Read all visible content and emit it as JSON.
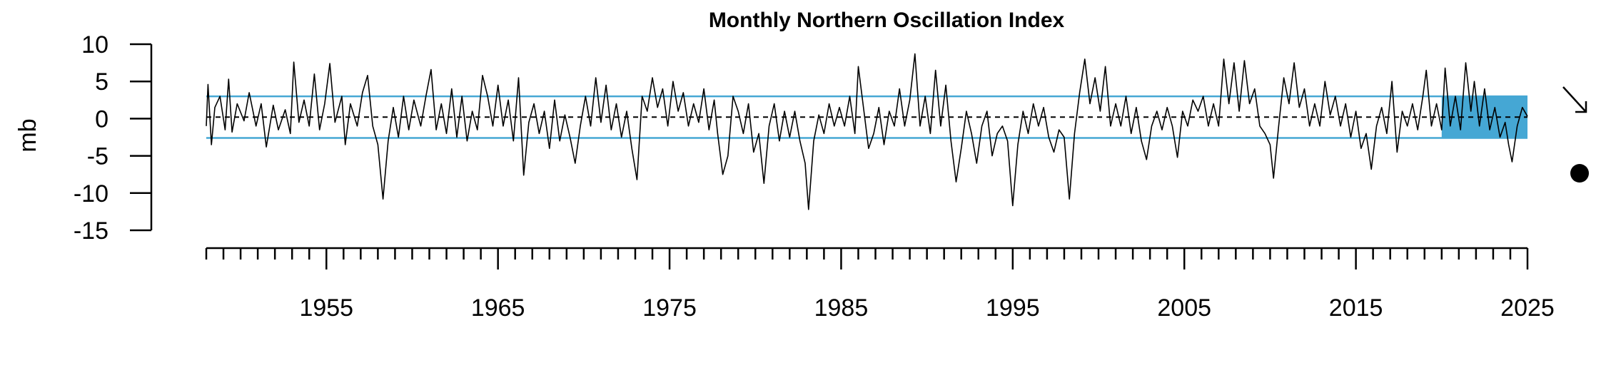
{
  "chart_data": {
    "type": "line",
    "title": "Monthly Northern Oscillation Index",
    "ylabel": "mb",
    "xlabel": "",
    "xlim": [
      1948,
      2025
    ],
    "ylim": [
      -15,
      10
    ],
    "yticks": [
      10,
      5,
      0,
      -5,
      -10,
      -15
    ],
    "xticks_labeled": [
      1955,
      1965,
      1975,
      1985,
      1995,
      2005,
      2015,
      2025
    ],
    "grid": false,
    "mean": 0.2,
    "band": {
      "upper": 3.0,
      "lower": -2.6
    },
    "highlight": {
      "start": 2020.0,
      "end": 2025.0
    },
    "trend": "decreasing",
    "status": "below",
    "colors": {
      "line": "#000000",
      "band": "#45a7d4",
      "highlight": "#45a7d4"
    },
    "series": [
      {
        "values": [
          {
            "x": 1948.0,
            "y": -1.0
          },
          {
            "x": 1948.1,
            "y": 4.6
          },
          {
            "x": 1948.3,
            "y": -3.5
          },
          {
            "x": 1948.5,
            "y": 1.5
          },
          {
            "x": 1948.8,
            "y": 3.0
          },
          {
            "x": 1949.1,
            "y": -1.5
          },
          {
            "x": 1949.3,
            "y": 5.3
          },
          {
            "x": 1949.5,
            "y": -1.8
          },
          {
            "x": 1949.8,
            "y": 2.0
          },
          {
            "x": 1950.2,
            "y": -0.3
          },
          {
            "x": 1950.5,
            "y": 3.5
          },
          {
            "x": 1950.9,
            "y": -1.0
          },
          {
            "x": 1951.2,
            "y": 2.0
          },
          {
            "x": 1951.5,
            "y": -3.8
          },
          {
            "x": 1951.9,
            "y": 1.8
          },
          {
            "x": 1952.2,
            "y": -1.5
          },
          {
            "x": 1952.6,
            "y": 1.2
          },
          {
            "x": 1952.9,
            "y": -2.0
          },
          {
            "x": 1953.1,
            "y": 7.6
          },
          {
            "x": 1953.4,
            "y": -0.5
          },
          {
            "x": 1953.7,
            "y": 2.5
          },
          {
            "x": 1954.0,
            "y": -1.0
          },
          {
            "x": 1954.3,
            "y": 6.0
          },
          {
            "x": 1954.6,
            "y": -1.5
          },
          {
            "x": 1954.9,
            "y": 2.0
          },
          {
            "x": 1955.2,
            "y": 7.4
          },
          {
            "x": 1955.5,
            "y": -0.5
          },
          {
            "x": 1955.9,
            "y": 3.0
          },
          {
            "x": 1956.1,
            "y": -3.5
          },
          {
            "x": 1956.4,
            "y": 2.0
          },
          {
            "x": 1956.8,
            "y": -1.0
          },
          {
            "x": 1957.1,
            "y": 3.5
          },
          {
            "x": 1957.4,
            "y": 5.8
          },
          {
            "x": 1957.7,
            "y": -1.0
          },
          {
            "x": 1958.0,
            "y": -3.5
          },
          {
            "x": 1958.3,
            "y": -10.8
          },
          {
            "x": 1958.6,
            "y": -3.0
          },
          {
            "x": 1958.9,
            "y": 1.5
          },
          {
            "x": 1959.2,
            "y": -2.5
          },
          {
            "x": 1959.5,
            "y": 3.0
          },
          {
            "x": 1959.8,
            "y": -1.5
          },
          {
            "x": 1960.1,
            "y": 2.5
          },
          {
            "x": 1960.5,
            "y": -1.0
          },
          {
            "x": 1960.8,
            "y": 3.0
          },
          {
            "x": 1961.1,
            "y": 6.6
          },
          {
            "x": 1961.4,
            "y": -1.5
          },
          {
            "x": 1961.7,
            "y": 2.0
          },
          {
            "x": 1962.0,
            "y": -2.0
          },
          {
            "x": 1962.3,
            "y": 4.0
          },
          {
            "x": 1962.6,
            "y": -2.5
          },
          {
            "x": 1962.9,
            "y": 3.0
          },
          {
            "x": 1963.2,
            "y": -3.0
          },
          {
            "x": 1963.5,
            "y": 1.0
          },
          {
            "x": 1963.8,
            "y": -1.5
          },
          {
            "x": 1964.1,
            "y": 5.8
          },
          {
            "x": 1964.4,
            "y": 3.0
          },
          {
            "x": 1964.7,
            "y": -1.0
          },
          {
            "x": 1965.0,
            "y": 4.5
          },
          {
            "x": 1965.3,
            "y": -1.0
          },
          {
            "x": 1965.6,
            "y": 2.5
          },
          {
            "x": 1965.9,
            "y": -3.0
          },
          {
            "x": 1966.2,
            "y": 5.5
          },
          {
            "x": 1966.5,
            "y": -7.6
          },
          {
            "x": 1966.8,
            "y": -0.5
          },
          {
            "x": 1967.1,
            "y": 2.0
          },
          {
            "x": 1967.4,
            "y": -2.0
          },
          {
            "x": 1967.7,
            "y": 1.0
          },
          {
            "x": 1968.0,
            "y": -4.0
          },
          {
            "x": 1968.3,
            "y": 2.5
          },
          {
            "x": 1968.6,
            "y": -3.0
          },
          {
            "x": 1968.9,
            "y": 0.5
          },
          {
            "x": 1969.2,
            "y": -2.5
          },
          {
            "x": 1969.5,
            "y": -6.0
          },
          {
            "x": 1969.8,
            "y": -1.0
          },
          {
            "x": 1970.1,
            "y": 3.0
          },
          {
            "x": 1970.4,
            "y": -1.0
          },
          {
            "x": 1970.7,
            "y": 5.5
          },
          {
            "x": 1971.0,
            "y": -0.5
          },
          {
            "x": 1971.3,
            "y": 4.5
          },
          {
            "x": 1971.6,
            "y": -1.5
          },
          {
            "x": 1971.9,
            "y": 2.0
          },
          {
            "x": 1972.2,
            "y": -2.5
          },
          {
            "x": 1972.5,
            "y": 1.0
          },
          {
            "x": 1972.8,
            "y": -4.0
          },
          {
            "x": 1973.1,
            "y": -8.2
          },
          {
            "x": 1973.4,
            "y": 3.0
          },
          {
            "x": 1973.7,
            "y": 1.0
          },
          {
            "x": 1974.0,
            "y": 5.5
          },
          {
            "x": 1974.3,
            "y": 1.5
          },
          {
            "x": 1974.6,
            "y": 4.0
          },
          {
            "x": 1974.9,
            "y": -1.0
          },
          {
            "x": 1975.2,
            "y": 5.0
          },
          {
            "x": 1975.5,
            "y": 1.0
          },
          {
            "x": 1975.8,
            "y": 3.5
          },
          {
            "x": 1976.1,
            "y": -1.0
          },
          {
            "x": 1976.4,
            "y": 2.0
          },
          {
            "x": 1976.7,
            "y": -0.5
          },
          {
            "x": 1977.0,
            "y": 4.0
          },
          {
            "x": 1977.3,
            "y": -1.5
          },
          {
            "x": 1977.6,
            "y": 2.5
          },
          {
            "x": 1977.8,
            "y": -2.0
          },
          {
            "x": 1978.1,
            "y": -7.5
          },
          {
            "x": 1978.4,
            "y": -5.0
          },
          {
            "x": 1978.7,
            "y": 3.0
          },
          {
            "x": 1979.0,
            "y": 1.0
          },
          {
            "x": 1979.3,
            "y": -2.0
          },
          {
            "x": 1979.6,
            "y": 2.0
          },
          {
            "x": 1979.9,
            "y": -4.5
          },
          {
            "x": 1980.2,
            "y": -2.0
          },
          {
            "x": 1980.5,
            "y": -8.7
          },
          {
            "x": 1980.8,
            "y": -1.0
          },
          {
            "x": 1981.1,
            "y": 2.0
          },
          {
            "x": 1981.4,
            "y": -3.0
          },
          {
            "x": 1981.7,
            "y": 1.0
          },
          {
            "x": 1982.0,
            "y": -2.5
          },
          {
            "x": 1982.3,
            "y": 1.0
          },
          {
            "x": 1982.6,
            "y": -3.0
          },
          {
            "x": 1982.9,
            "y": -6.0
          },
          {
            "x": 1983.1,
            "y": -12.2
          },
          {
            "x": 1983.4,
            "y": -3.0
          },
          {
            "x": 1983.7,
            "y": 0.5
          },
          {
            "x": 1984.0,
            "y": -2.0
          },
          {
            "x": 1984.3,
            "y": 2.0
          },
          {
            "x": 1984.6,
            "y": -1.0
          },
          {
            "x": 1984.9,
            "y": 1.5
          },
          {
            "x": 1985.2,
            "y": -1.0
          },
          {
            "x": 1985.5,
            "y": 3.0
          },
          {
            "x": 1985.8,
            "y": -2.0
          },
          {
            "x": 1986.0,
            "y": 7.0
          },
          {
            "x": 1986.3,
            "y": 1.5
          },
          {
            "x": 1986.6,
            "y": -4.0
          },
          {
            "x": 1986.9,
            "y": -2.0
          },
          {
            "x": 1987.2,
            "y": 1.5
          },
          {
            "x": 1987.5,
            "y": -3.5
          },
          {
            "x": 1987.8,
            "y": 1.0
          },
          {
            "x": 1988.1,
            "y": -1.0
          },
          {
            "x": 1988.4,
            "y": 4.0
          },
          {
            "x": 1988.7,
            "y": -1.0
          },
          {
            "x": 1989.0,
            "y": 2.5
          },
          {
            "x": 1989.3,
            "y": 8.7
          },
          {
            "x": 1989.6,
            "y": -1.0
          },
          {
            "x": 1989.9,
            "y": 3.0
          },
          {
            "x": 1990.2,
            "y": -2.0
          },
          {
            "x": 1990.5,
            "y": 6.5
          },
          {
            "x": 1990.8,
            "y": -1.0
          },
          {
            "x": 1991.1,
            "y": 4.5
          },
          {
            "x": 1991.4,
            "y": -3.0
          },
          {
            "x": 1991.7,
            "y": -8.5
          },
          {
            "x": 1992.0,
            "y": -4.0
          },
          {
            "x": 1992.3,
            "y": 1.0
          },
          {
            "x": 1992.6,
            "y": -2.0
          },
          {
            "x": 1992.9,
            "y": -6.0
          },
          {
            "x": 1993.2,
            "y": -1.0
          },
          {
            "x": 1993.5,
            "y": 1.0
          },
          {
            "x": 1993.8,
            "y": -5.0
          },
          {
            "x": 1994.1,
            "y": -2.0
          },
          {
            "x": 1994.4,
            "y": -1.0
          },
          {
            "x": 1994.7,
            "y": -3.0
          },
          {
            "x": 1995.0,
            "y": -11.7
          },
          {
            "x": 1995.3,
            "y": -3.5
          },
          {
            "x": 1995.6,
            "y": 1.0
          },
          {
            "x": 1995.9,
            "y": -2.0
          },
          {
            "x": 1996.2,
            "y": 2.0
          },
          {
            "x": 1996.5,
            "y": -1.0
          },
          {
            "x": 1996.8,
            "y": 1.5
          },
          {
            "x": 1997.1,
            "y": -2.5
          },
          {
            "x": 1997.4,
            "y": -4.5
          },
          {
            "x": 1997.7,
            "y": -1.5
          },
          {
            "x": 1998.0,
            "y": -2.5
          },
          {
            "x": 1998.3,
            "y": -10.8
          },
          {
            "x": 1998.6,
            "y": -2.0
          },
          {
            "x": 1998.9,
            "y": 3.5
          },
          {
            "x": 1999.2,
            "y": 8.0
          },
          {
            "x": 1999.5,
            "y": 2.0
          },
          {
            "x": 1999.8,
            "y": 5.5
          },
          {
            "x": 2000.1,
            "y": 1.0
          },
          {
            "x": 2000.4,
            "y": 7.0
          },
          {
            "x": 2000.7,
            "y": -1.0
          },
          {
            "x": 2001.0,
            "y": 2.0
          },
          {
            "x": 2001.3,
            "y": -1.0
          },
          {
            "x": 2001.6,
            "y": 3.0
          },
          {
            "x": 2001.9,
            "y": -2.0
          },
          {
            "x": 2002.2,
            "y": 1.5
          },
          {
            "x": 2002.5,
            "y": -3.0
          },
          {
            "x": 2002.8,
            "y": -5.5
          },
          {
            "x": 2003.1,
            "y": -1.0
          },
          {
            "x": 2003.4,
            "y": 1.0
          },
          {
            "x": 2003.7,
            "y": -1.5
          },
          {
            "x": 2004.0,
            "y": 1.5
          },
          {
            "x": 2004.3,
            "y": -1.0
          },
          {
            "x": 2004.6,
            "y": -5.2
          },
          {
            "x": 2004.9,
            "y": 1.0
          },
          {
            "x": 2005.2,
            "y": -1.0
          },
          {
            "x": 2005.5,
            "y": 2.5
          },
          {
            "x": 2005.8,
            "y": 1.0
          },
          {
            "x": 2006.1,
            "y": 3.0
          },
          {
            "x": 2006.4,
            "y": -1.0
          },
          {
            "x": 2006.7,
            "y": 2.0
          },
          {
            "x": 2007.0,
            "y": -1.0
          },
          {
            "x": 2007.3,
            "y": 8.0
          },
          {
            "x": 2007.6,
            "y": 2.0
          },
          {
            "x": 2007.9,
            "y": 7.5
          },
          {
            "x": 2008.2,
            "y": 1.0
          },
          {
            "x": 2008.5,
            "y": 7.8
          },
          {
            "x": 2008.8,
            "y": 2.0
          },
          {
            "x": 2009.1,
            "y": 4.0
          },
          {
            "x": 2009.4,
            "y": -1.0
          },
          {
            "x": 2009.7,
            "y": -2.0
          },
          {
            "x": 2010.0,
            "y": -3.5
          },
          {
            "x": 2010.2,
            "y": -8.0
          },
          {
            "x": 2010.5,
            "y": -1.0
          },
          {
            "x": 2010.8,
            "y": 5.5
          },
          {
            "x": 2011.1,
            "y": 2.0
          },
          {
            "x": 2011.4,
            "y": 7.5
          },
          {
            "x": 2011.7,
            "y": 1.5
          },
          {
            "x": 2012.0,
            "y": 4.0
          },
          {
            "x": 2012.3,
            "y": -1.0
          },
          {
            "x": 2012.6,
            "y": 2.0
          },
          {
            "x": 2012.9,
            "y": -1.0
          },
          {
            "x": 2013.2,
            "y": 5.0
          },
          {
            "x": 2013.5,
            "y": 0.5
          },
          {
            "x": 2013.8,
            "y": 3.0
          },
          {
            "x": 2014.1,
            "y": -1.0
          },
          {
            "x": 2014.4,
            "y": 2.0
          },
          {
            "x": 2014.7,
            "y": -2.5
          },
          {
            "x": 2015.0,
            "y": 1.0
          },
          {
            "x": 2015.3,
            "y": -4.0
          },
          {
            "x": 2015.6,
            "y": -2.0
          },
          {
            "x": 2015.9,
            "y": -6.8
          },
          {
            "x": 2016.2,
            "y": -1.0
          },
          {
            "x": 2016.5,
            "y": 1.5
          },
          {
            "x": 2016.8,
            "y": -2.0
          },
          {
            "x": 2017.1,
            "y": 5.0
          },
          {
            "x": 2017.4,
            "y": -4.5
          },
          {
            "x": 2017.7,
            "y": 1.0
          },
          {
            "x": 2018.0,
            "y": -1.0
          },
          {
            "x": 2018.3,
            "y": 2.0
          },
          {
            "x": 2018.6,
            "y": -1.5
          },
          {
            "x": 2018.9,
            "y": 3.0
          },
          {
            "x": 2019.1,
            "y": 6.5
          },
          {
            "x": 2019.4,
            "y": -1.0
          },
          {
            "x": 2019.7,
            "y": 2.0
          },
          {
            "x": 2020.0,
            "y": -1.5
          },
          {
            "x": 2020.2,
            "y": 6.8
          },
          {
            "x": 2020.5,
            "y": -1.0
          },
          {
            "x": 2020.8,
            "y": 3.0
          },
          {
            "x": 2021.1,
            "y": -1.5
          },
          {
            "x": 2021.4,
            "y": 7.5
          },
          {
            "x": 2021.7,
            "y": 1.0
          },
          {
            "x": 2021.9,
            "y": 5.0
          },
          {
            "x": 2022.2,
            "y": -1.0
          },
          {
            "x": 2022.5,
            "y": 4.0
          },
          {
            "x": 2022.8,
            "y": -1.5
          },
          {
            "x": 2023.1,
            "y": 1.5
          },
          {
            "x": 2023.4,
            "y": -2.5
          },
          {
            "x": 2023.7,
            "y": -0.5
          },
          {
            "x": 2023.9,
            "y": -3.5
          },
          {
            "x": 2024.1,
            "y": -5.8
          },
          {
            "x": 2024.4,
            "y": -1.0
          },
          {
            "x": 2024.7,
            "y": 1.5
          },
          {
            "x": 2025.0,
            "y": 0.3
          }
        ]
      }
    ]
  }
}
